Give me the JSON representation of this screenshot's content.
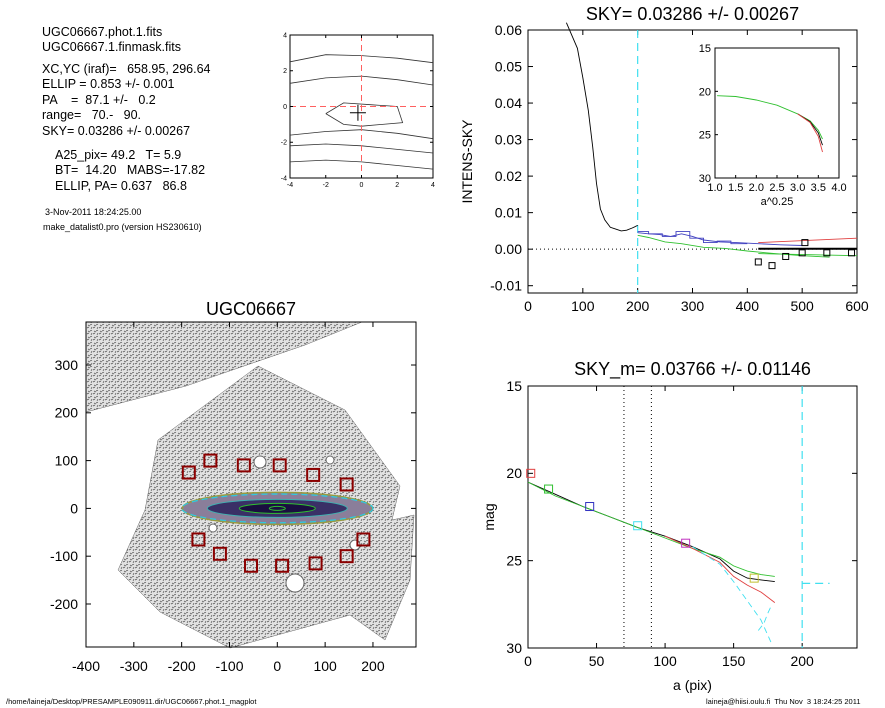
{
  "info": {
    "lines": [
      "UGC06667.phot.1.fits",
      "UGC06667.1.finmask.fits",
      "XC,YC (iraf)=   658.95, 296.64",
      "ELLIP = 0.853 +/- 0.001",
      "PA    =  87.1 +/-   0.2",
      "range=   70.-   90.",
      "SKY= 0.03286 +/- 0.00267",
      "A25_pix= 49.2   T= 5.9",
      "BT=  14.20   MABS=-17.82",
      "ELLIP, PA= 0.637   86.8"
    ],
    "date": "3-Nov-2011 18:24:25.00",
    "program": "make_datalist0.pro (version HS230610)"
  },
  "footer": {
    "path": "/home/laineja/Desktop/PRESAMPLE090911.dir/UGC06667.phot.1_magplot",
    "user": "laineja@hiisi.oulu.fi  Thu Nov  3 18:24:25 2011"
  },
  "chart_data": [
    {
      "id": "center-plot",
      "type": "line",
      "title": "",
      "xlim": [
        -4,
        4
      ],
      "ylim": [
        -4,
        4
      ],
      "x_ticks": [
        "-4",
        "-2",
        "0",
        "2",
        "4"
      ],
      "y_ticks": [
        "-4",
        "-2",
        "0",
        "2",
        "4"
      ],
      "series": [
        {
          "values": [
            [
              -4,
              2.5
            ],
            [
              -2,
              2.9
            ],
            [
              0,
              2.85
            ],
            [
              2,
              2.7
            ],
            [
              4,
              2.45
            ]
          ]
        },
        {
          "values": [
            [
              -4,
              1.3
            ],
            [
              -2,
              1.6
            ],
            [
              0,
              1.7
            ],
            [
              2,
              1.5
            ],
            [
              4,
              1.2
            ]
          ]
        },
        {
          "values": [
            [
              -4,
              -1.6
            ],
            [
              -2,
              -1.4
            ],
            [
              0,
              -1.3
            ],
            [
              2,
              -1.5
            ],
            [
              4,
              -1.8
            ]
          ]
        },
        {
          "values": [
            [
              -4,
              -2.2
            ],
            [
              -2,
              -2.1
            ],
            [
              0,
              -2.2
            ],
            [
              2,
              -2.4
            ],
            [
              4,
              -2.6
            ]
          ]
        },
        {
          "values": [
            [
              -4,
              -3.1
            ],
            [
              -2,
              -3.0
            ],
            [
              0,
              -3.1
            ],
            [
              2,
              -3.3
            ],
            [
              4,
              -3.5
            ]
          ]
        },
        {
          "values": [
            [
              -2,
              -0.4
            ],
            [
              -1,
              0.2
            ],
            [
              0.5,
              0.1
            ],
            [
              2,
              0
            ],
            [
              2.3,
              -0.9
            ],
            [
              0,
              -1.1
            ],
            [
              -1,
              -1.0
            ],
            [
              -2,
              -0.4
            ]
          ]
        }
      ],
      "crosshair": {
        "x": 0,
        "y": 0,
        "color": "#ff6060"
      },
      "marker": {
        "x": -0.2,
        "y": -0.35
      }
    },
    {
      "id": "sky-plot",
      "type": "line",
      "title": "SKY= 0.03286 +/- 0.00267",
      "xlabel": "",
      "ylabel": "INTENS-SKY",
      "xlim": [
        0,
        600
      ],
      "ylim": [
        -0.012,
        0.06
      ],
      "x_ticks": [
        "0",
        "100",
        "200",
        "300",
        "400",
        "500",
        "600"
      ],
      "y_ticks": [
        "-0.01",
        "0.00",
        "0.01",
        "0.02",
        "0.03",
        "0.04",
        "0.05",
        "0.06"
      ],
      "vline": {
        "x": 200,
        "color": "#40e0f0"
      },
      "series": [
        {
          "name": "",
          "color": "#000000",
          "values": [
            [
              70,
              0.062
            ],
            [
              90,
              0.055
            ],
            [
              100,
              0.047
            ],
            [
              110,
              0.038
            ],
            [
              118,
              0.028
            ],
            [
              125,
              0.018
            ],
            [
              132,
              0.011
            ],
            [
              140,
              0.008
            ],
            [
              150,
              0.006
            ],
            [
              160,
              0.0055
            ],
            [
              170,
              0.005
            ],
            [
              180,
              0.0052
            ],
            [
              190,
              0.0058
            ],
            [
              200,
              0.0065
            ]
          ]
        },
        {
          "name": "",
          "color": "#4040c0",
          "values": [
            [
              200,
              0.0045
            ],
            [
              220,
              0.0042
            ],
            [
              240,
              0.004
            ],
            [
              260,
              0.0035
            ],
            [
              280,
              0.0042
            ],
            [
              300,
              0.0035
            ],
            [
              320,
              0.0025
            ],
            [
              350,
              0.002
            ],
            [
              380,
              0.0018
            ],
            [
              420,
              0.0015
            ],
            [
              460,
              0.0012
            ],
            [
              500,
              0.001
            ]
          ]
        },
        {
          "name": "",
          "color": "#30c030",
          "values": [
            [
              200,
              0.0038
            ],
            [
              220,
              0.0032
            ],
            [
              250,
              0.002
            ],
            [
              280,
              0.0015
            ],
            [
              320,
              0.0005
            ],
            [
              360,
              0.0002
            ],
            [
              400,
              -0.0005
            ],
            [
              450,
              -0.0012
            ],
            [
              500,
              -0.0018
            ],
            [
              550,
              -0.0022
            ]
          ]
        },
        {
          "name": "",
          "color": "#e04040",
          "values": [
            [
              420,
              0.0018
            ],
            [
              600,
              0.003
            ]
          ]
        },
        {
          "name": "",
          "color": "#30c030",
          "values": [
            [
              420,
              -0.0012
            ],
            [
              600,
              -0.0018
            ]
          ]
        },
        {
          "name": "",
          "color": "#000000",
          "values": [
            [
              420,
              0.0001
            ],
            [
              600,
              0.0001
            ]
          ],
          "width": 2
        }
      ],
      "stairs": [
        [
          200,
          0.0048
        ],
        [
          220,
          0.0048
        ],
        [
          220,
          0.0042
        ],
        [
          245,
          0.0042
        ],
        [
          245,
          0.0035
        ],
        [
          270,
          0.0035
        ],
        [
          270,
          0.0048
        ],
        [
          295,
          0.0048
        ],
        [
          295,
          0.003
        ],
        [
          320,
          0.003
        ],
        [
          320,
          0.0018
        ],
        [
          345,
          0.0018
        ],
        [
          345,
          0.0022
        ],
        [
          370,
          0.0022
        ],
        [
          370,
          0.0015
        ],
        [
          400,
          0.0015
        ]
      ],
      "squares": [
        [
          420,
          -0.0035
        ],
        [
          445,
          -0.0045
        ],
        [
          470,
          -0.002
        ],
        [
          500,
          -0.001
        ],
        [
          505,
          0.0018
        ],
        [
          545,
          -0.001
        ],
        [
          590,
          -0.001
        ]
      ],
      "zero_line": 0,
      "inset": {
        "xlabel": "a^0.25",
        "xlim": [
          1.0,
          4.0
        ],
        "ylim": [
          30,
          15
        ],
        "x_ticks": [
          "1.0",
          "1.5",
          "2.0",
          "2.5",
          "3.0",
          "3.5",
          "4.0"
        ],
        "y_ticks": [
          "15",
          "20",
          "25",
          "30"
        ],
        "series": [
          {
            "color": "#30c030",
            "values": [
              [
                1.05,
                20.5
              ],
              [
                1.5,
                20.6
              ],
              [
                2.0,
                21.0
              ],
              [
                2.5,
                21.6
              ],
              [
                3.0,
                22.6
              ],
              [
                3.3,
                23.4
              ],
              [
                3.5,
                24.5
              ],
              [
                3.6,
                25.5
              ]
            ]
          },
          {
            "color": "#000000",
            "values": [
              [
                3.0,
                22.6
              ],
              [
                3.3,
                23.5
              ],
              [
                3.5,
                24.8
              ],
              [
                3.6,
                26.2
              ]
            ]
          },
          {
            "color": "#e04040",
            "values": [
              [
                3.0,
                22.6
              ],
              [
                3.3,
                23.6
              ],
              [
                3.5,
                25.2
              ],
              [
                3.6,
                27.0
              ]
            ]
          }
        ]
      }
    },
    {
      "id": "galaxy-image",
      "type": "scatter",
      "title": "UGC06667",
      "xlim": [
        -400,
        290
      ],
      "ylim": [
        -290,
        390
      ],
      "x_ticks": [
        "-400",
        "-300",
        "-200",
        "-100",
        "0",
        "100",
        "200"
      ],
      "y_ticks": [
        "-200",
        "-100",
        "0",
        "100",
        "200",
        "300"
      ],
      "ellipse": {
        "cx": 0,
        "cy": 0,
        "rx": 200,
        "ry": 30
      },
      "sky_boxes": [
        [
          -185,
          75
        ],
        [
          -140,
          100
        ],
        [
          -70,
          90
        ],
        [
          5,
          90
        ],
        [
          75,
          70
        ],
        [
          145,
          50
        ],
        [
          -165,
          -65
        ],
        [
          -120,
          -95
        ],
        [
          -55,
          -120
        ],
        [
          10,
          -120
        ],
        [
          80,
          -115
        ],
        [
          145,
          -100
        ],
        [
          180,
          -65
        ]
      ]
    },
    {
      "id": "mag-plot",
      "type": "line",
      "title": "SKY_m=  0.03766 +/- 0.01146",
      "xlabel": "a (pix)",
      "ylabel": "mag",
      "xlim": [
        0,
        240
      ],
      "ylim": [
        30,
        15
      ],
      "x_ticks": [
        "0",
        "50",
        "100",
        "150",
        "200"
      ],
      "y_ticks": [
        "15",
        "20",
        "25",
        "30"
      ],
      "vlines_dotted": [
        70,
        90
      ],
      "vline_dashed": {
        "x": 200,
        "y_end": 26.3,
        "color": "#40e0f0"
      },
      "series": [
        {
          "name": "",
          "color": "#000000",
          "values": [
            [
              0,
              20.5
            ],
            [
              20,
              21.2
            ],
            [
              40,
              21.9
            ],
            [
              60,
              22.5
            ],
            [
              80,
              23.1
            ],
            [
              100,
              23.6
            ],
            [
              120,
              24.2
            ],
            [
              140,
              24.9
            ],
            [
              150,
              25.6
            ],
            [
              160,
              26.0
            ],
            [
              170,
              26.1
            ],
            [
              180,
              26.2
            ]
          ]
        },
        {
          "name": "",
          "color": "#30c030",
          "values": [
            [
              0,
              20.5
            ],
            [
              20,
              21.3
            ],
            [
              40,
              21.9
            ],
            [
              60,
              22.5
            ],
            [
              80,
              23.1
            ],
            [
              100,
              23.7
            ],
            [
              120,
              24.3
            ],
            [
              140,
              24.8
            ],
            [
              150,
              25.3
            ],
            [
              160,
              25.6
            ],
            [
              170,
              25.8
            ],
            [
              180,
              25.9
            ]
          ]
        },
        {
          "name": "",
          "color": "#e04040",
          "values": [
            [
              100,
              23.6
            ],
            [
              120,
              24.3
            ],
            [
              140,
              25.1
            ],
            [
              150,
              25.9
            ],
            [
              160,
              26.4
            ],
            [
              170,
              26.8
            ],
            [
              180,
              27.4
            ]
          ]
        },
        {
          "name": "",
          "color": "#40e0f0",
          "dashed": true,
          "values": [
            [
              120,
              24.2
            ],
            [
              140,
              25.2
            ],
            [
              150,
              26.2
            ],
            [
              160,
              27.3
            ],
            [
              170,
              28.4
            ],
            [
              178,
              29.8
            ]
          ]
        },
        {
          "name": "",
          "color": "#40e0f0",
          "dashed": true,
          "values": [
            [
              168,
              29.0
            ],
            [
              172,
              28.6
            ],
            [
              175,
              28.0
            ],
            [
              178,
              27.5
            ]
          ]
        }
      ],
      "squares": [
        {
          "x": 2,
          "y": 20.0,
          "color": "#e04040"
        },
        {
          "x": 15,
          "y": 20.9,
          "color": "#30c030"
        },
        {
          "x": 45,
          "y": 21.9,
          "color": "#3030c0"
        },
        {
          "x": 80,
          "y": 23.0,
          "color": "#40e0f0"
        },
        {
          "x": 115,
          "y": 24.0,
          "color": "#c030c0"
        },
        {
          "x": 165,
          "y": 26.0,
          "color": "#c0c030"
        }
      ]
    }
  ]
}
